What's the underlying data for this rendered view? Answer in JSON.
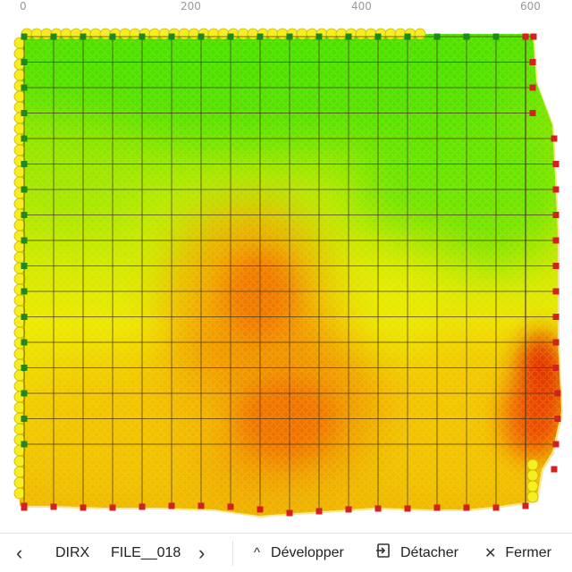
{
  "ruler": {
    "ticks": [
      {
        "value": 0,
        "label": "0"
      },
      {
        "value": 200,
        "label": "200"
      },
      {
        "value": 400,
        "label": "400"
      },
      {
        "value": 600,
        "label": "600"
      }
    ]
  },
  "map": {
    "colors": {
      "green": "#3ee000",
      "yellow": "#f4f000",
      "orange": "#f08000",
      "red": "#e02000",
      "grid_line": "#4a3a10",
      "marker_green": "#1e8a1e",
      "marker_red": "#d42020",
      "boundary_circle": "#f6ee20"
    },
    "columns": 18,
    "rows": 17
  },
  "toolbar": {
    "prev_icon": "chevron-left-icon",
    "prev_glyph": "‹",
    "dir_label": "DIRX",
    "file_label": "FILE__018",
    "next_icon": "chevron-right-icon",
    "next_glyph": "›",
    "expand_icon": "chevron-up-icon",
    "expand_glyph": "^",
    "expand_label": "Développer",
    "detach_icon": "detach-icon",
    "detach_label": "Détacher",
    "close_icon": "close-icon",
    "close_glyph": "✕",
    "close_label": "Fermer"
  }
}
